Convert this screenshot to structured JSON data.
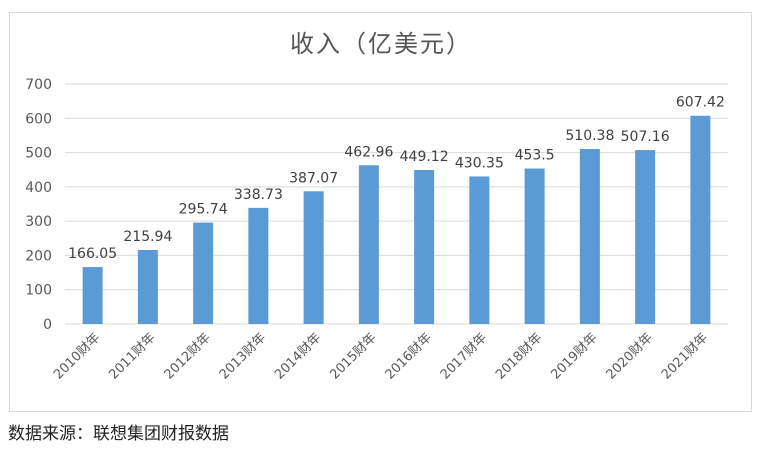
{
  "chart_data": {
    "type": "bar",
    "title": "收入（亿美元）",
    "categories": [
      "2010财年",
      "2011财年",
      "2012财年",
      "2013财年",
      "2014财年",
      "2015财年",
      "2016财年",
      "2017财年",
      "2018财年",
      "2019财年",
      "2020财年",
      "2021财年"
    ],
    "values": [
      166.05,
      215.94,
      295.74,
      338.73,
      387.07,
      462.96,
      449.12,
      430.35,
      453.5,
      510.38,
      507.16,
      607.42
    ],
    "value_labels": [
      "166.05",
      "215.94",
      "295.74",
      "338.73",
      "387.07",
      "462.96",
      "449.12",
      "430.35",
      "453.5",
      "510.38",
      "507.16",
      "607.42"
    ],
    "yticks": [
      "0",
      "100",
      "200",
      "300",
      "400",
      "500",
      "600",
      "700"
    ],
    "ylim": [
      0,
      700
    ],
    "xlabel": "",
    "ylabel": "",
    "bar_color": "#5b9bd5",
    "grid": true,
    "legend": "none"
  },
  "source_note": "数据来源：联想集团财报数据"
}
